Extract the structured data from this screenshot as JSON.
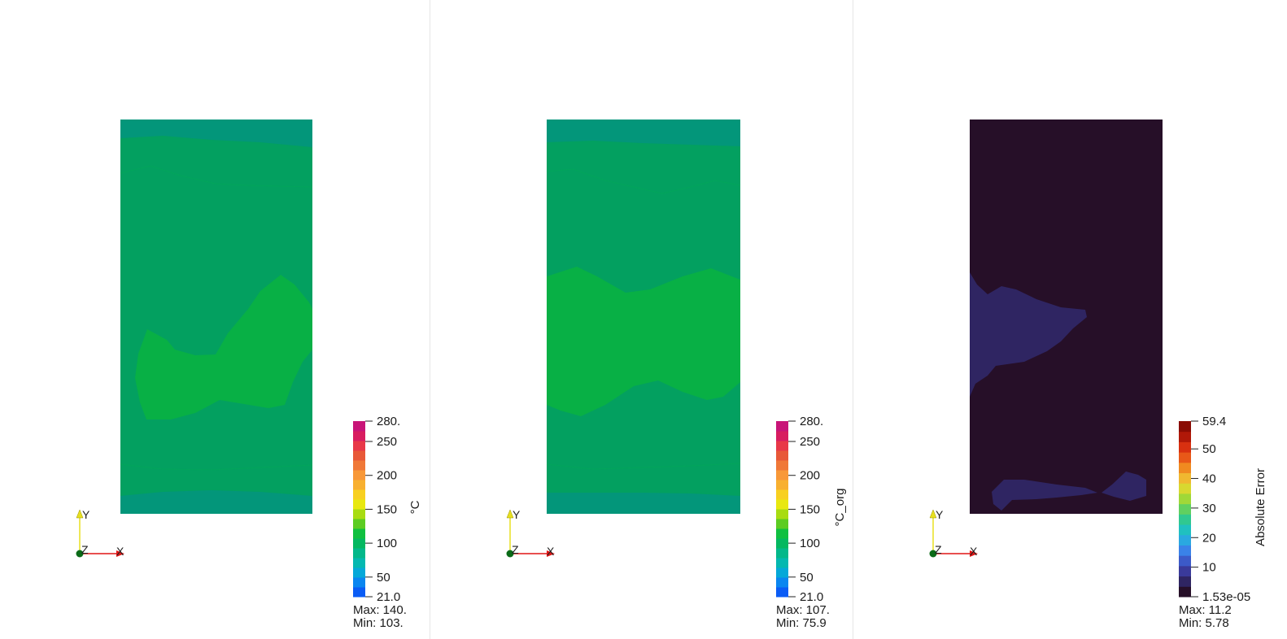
{
  "views": [
    {
      "id": "predicted",
      "colorbar": {
        "title": "°C",
        "ticks": [
          "280.",
          "250",
          "200",
          "150",
          "100",
          "50",
          "21.0"
        ],
        "scheme": "rainbow"
      },
      "stats": {
        "max": "Max: 140.",
        "min": "Min: 103."
      },
      "axes": {
        "x": "X",
        "y": "Y",
        "z": "Z"
      }
    },
    {
      "id": "original",
      "colorbar": {
        "title": "°C_org",
        "ticks": [
          "280.",
          "250",
          "200",
          "150",
          "100",
          "50",
          "21.0"
        ],
        "scheme": "rainbow"
      },
      "stats": {
        "max": "Max: 107.",
        "min": "Min: 75.9"
      },
      "axes": {
        "x": "X",
        "y": "Y",
        "z": "Z"
      }
    },
    {
      "id": "error",
      "colorbar": {
        "title": "Absolute Error",
        "ticks": [
          "59.4",
          "50",
          "40",
          "30",
          "20",
          "10",
          "1.53e-05"
        ],
        "scheme": "inferno-blue"
      },
      "stats": {
        "max": "Max: 11.2",
        "min": "Min: 5.78"
      },
      "axes": {
        "x": "X",
        "y": "Y",
        "z": "Z"
      }
    }
  ],
  "colors": {
    "field_dark": "#03967a",
    "field_mid": "#03a060",
    "field_light": "#08b045",
    "error_bg": "#260f28",
    "error_patch": "#2f2562",
    "axis_x": "#e01515",
    "axis_y": "#e8e020",
    "origin": "#0b6b18"
  }
}
